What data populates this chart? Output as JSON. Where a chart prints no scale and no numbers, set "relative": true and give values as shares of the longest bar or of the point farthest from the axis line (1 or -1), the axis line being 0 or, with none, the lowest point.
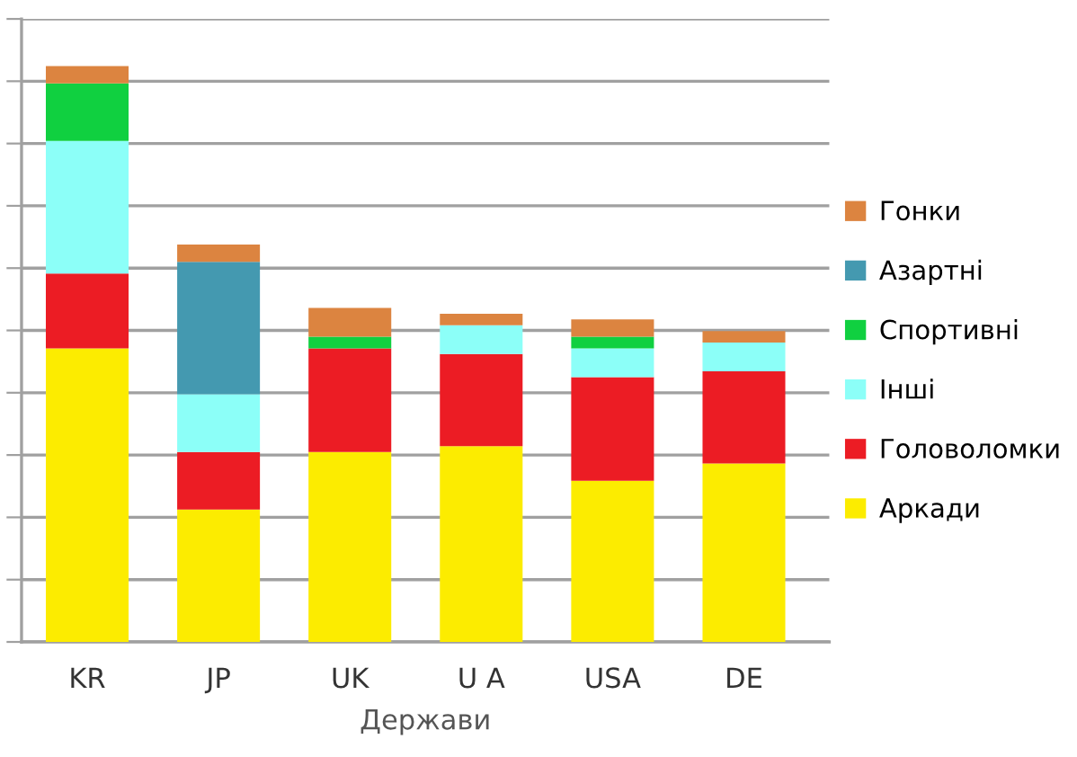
{
  "chart_data": {
    "type": "bar",
    "stacked": true,
    "relative": true,
    "xlabel": "Держави",
    "grid": "y",
    "legend": "right",
    "categories": [
      "KR",
      "JP",
      "UK",
      "U A",
      "USA",
      "DE"
    ],
    "series": [
      {
        "name": "Аркади",
        "color": "#fcec00",
        "values": [
          0.51,
          0.23,
          0.33,
          0.34,
          0.28,
          0.31
        ]
      },
      {
        "name": "Головоломки",
        "color": "#ec1c24",
        "values": [
          0.13,
          0.1,
          0.18,
          0.16,
          0.18,
          0.16
        ]
      },
      {
        "name": "Інші",
        "color": "#8cfff8",
        "values": [
          0.23,
          0.1,
          0,
          0.05,
          0.05,
          0.05
        ]
      },
      {
        "name": "Спортивні",
        "color": "#10d040",
        "values": [
          0.1,
          0,
          0.02,
          0,
          0.02,
          0
        ]
      },
      {
        "name": "Азартні",
        "color": "#4499b0",
        "values": [
          0,
          0.23,
          0,
          0,
          0,
          0
        ]
      },
      {
        "name": "Гонки",
        "color": "#dc8440",
        "values": [
          0.03,
          0.03,
          0.05,
          0.02,
          0.03,
          0.02
        ]
      }
    ]
  }
}
